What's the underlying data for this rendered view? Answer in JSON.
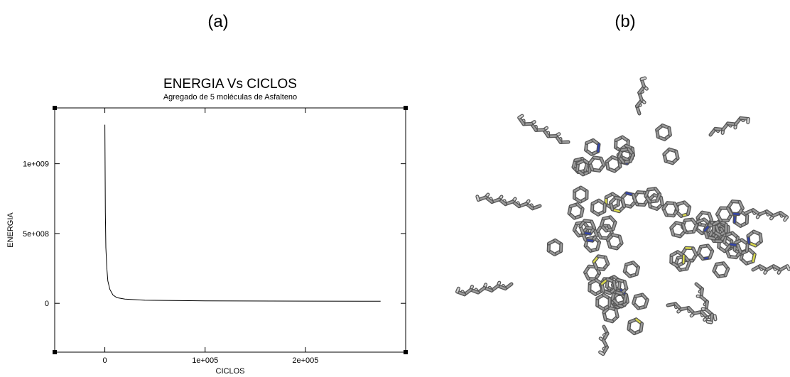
{
  "panel_labels": [
    "(a)",
    "(b)"
  ],
  "chart_data": {
    "type": "line",
    "title": "ENERGIA Vs CICLOS",
    "subtitle": "Agregado de 5 moléculas de Asfalteno",
    "x_label": "CICLOS",
    "y_label": "ENERGIA",
    "color": "#000000",
    "x": [
      0,
      500,
      1000,
      2000,
      3000,
      5000,
      8000,
      12000,
      20000,
      40000,
      100000,
      200000,
      275000
    ],
    "values": [
      1280000000,
      650000000,
      400000000,
      250000000,
      160000000,
      100000000,
      60000000,
      40000000,
      30000000,
      22000000,
      18000000,
      16000000,
      15000000
    ],
    "xlim": [
      -50000,
      300000
    ],
    "ylim": [
      -350000000,
      1400000000
    ],
    "xticks": [
      0,
      {
        "value": 100000,
        "label": "1e+005"
      },
      {
        "value": 200000,
        "label": "2e+005"
      }
    ],
    "yticks": [
      0,
      {
        "value": 500000000,
        "label": "5e+008"
      },
      {
        "value": 1000000000,
        "label": "1e+009"
      }
    ]
  }
}
